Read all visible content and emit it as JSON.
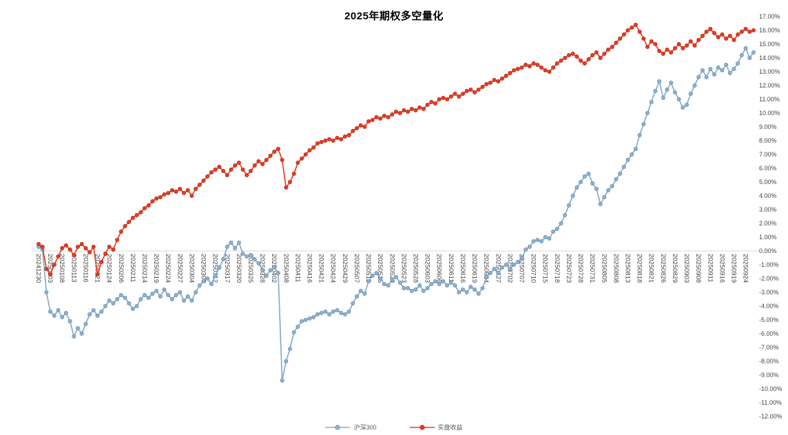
{
  "chart_data": {
    "type": "line",
    "title": "2025年期权多空量化",
    "x": [
      "20241230",
      "20241231",
      "20250102",
      "20250103",
      "20250106",
      "20250107",
      "20250108",
      "20250109",
      "20250110",
      "20250113",
      "20250114",
      "20250115",
      "20250116",
      "20250117",
      "20250120",
      "20250121",
      "20250122",
      "20250123",
      "20250124",
      "20250127",
      "20250205",
      "20250206",
      "20250207",
      "20250210",
      "20250211",
      "20250212",
      "20250213",
      "20250214",
      "20250217",
      "20250218",
      "20250219",
      "20250220",
      "20250221",
      "20250224",
      "20250225",
      "20250226",
      "20250227",
      "20250228",
      "20250303",
      "20250304",
      "20250305",
      "20250306",
      "20250307",
      "20250310",
      "20250311",
      "20250312",
      "20250313",
      "20250314",
      "20250317",
      "20250318",
      "20250319",
      "20250320",
      "20250321",
      "20250324",
      "20250325",
      "20250326",
      "20250327",
      "20250328",
      "20250331",
      "20250401",
      "20250402",
      "20250403",
      "20250407",
      "20250408",
      "20250409",
      "20250410",
      "20250411",
      "20250414",
      "20250415",
      "20250416",
      "20250417",
      "20250418",
      "20250421",
      "20250422",
      "20250423",
      "20250424",
      "20250425",
      "20250428",
      "20250429",
      "20250430",
      "20250506",
      "20250507",
      "20250508",
      "20250509",
      "20250512",
      "20250513",
      "20250514",
      "20250515",
      "20250516",
      "20250519",
      "20250520",
      "20250521",
      "20250522",
      "20250523",
      "20250526",
      "20250527",
      "20250528",
      "20250529",
      "20250530",
      "20250603",
      "20250604",
      "20250605",
      "20250606",
      "20250609",
      "20250610",
      "20250611",
      "20250612",
      "20250613",
      "20250616",
      "20250617",
      "20250618",
      "20250619",
      "20250620",
      "20250623",
      "20250624",
      "20250625",
      "20250626",
      "20250627",
      "20250630",
      "20250701",
      "20250702",
      "20250703",
      "20250704",
      "20250707",
      "20250708",
      "20250709",
      "20250710",
      "20250711",
      "20250714",
      "20250715",
      "20250716",
      "20250717",
      "20250718",
      "20250721",
      "20250722",
      "20250723",
      "20250724",
      "20250725",
      "20250728",
      "20250729",
      "20250730",
      "20250731",
      "20250801",
      "20250804",
      "20250805",
      "20250806",
      "20250807",
      "20250808",
      "20250811",
      "20250812",
      "20250813",
      "20250814",
      "20250815",
      "20250818",
      "20250819",
      "20250820",
      "20250821",
      "20250822",
      "20250825",
      "20250826",
      "20250827",
      "20250828",
      "20250829",
      "20250901",
      "20250902",
      "20250903",
      "20250904",
      "20250905",
      "20250908",
      "20250909",
      "20250910",
      "20250911",
      "20250912",
      "20250915",
      "20250916",
      "20250917",
      "20250918",
      "20250919",
      "20250922",
      "20250923",
      "20250924",
      "20250925",
      "20250926"
    ],
    "series": [
      {
        "id": "csi300",
        "name": "沪深300",
        "color": "#85ABCB",
        "marker_fill": "#8FB2D0",
        "marker_stroke": "#6690B5",
        "values": [
          0.3,
          0.1,
          -3.0,
          -4.4,
          -4.7,
          -4.3,
          -4.8,
          -4.5,
          -5.1,
          -6.2,
          -5.6,
          -6.0,
          -5.3,
          -4.6,
          -4.3,
          -4.7,
          -4.4,
          -4.0,
          -3.6,
          -3.8,
          -3.5,
          -3.2,
          -3.4,
          -3.8,
          -4.2,
          -4.0,
          -3.5,
          -3.2,
          -3.4,
          -3.1,
          -2.9,
          -3.3,
          -2.8,
          -3.2,
          -3.5,
          -3.2,
          -3.0,
          -3.6,
          -3.3,
          -3.6,
          -3.0,
          -2.5,
          -2.2,
          -2.0,
          -2.4,
          -1.8,
          -1.2,
          -0.6,
          0.3,
          0.6,
          0.2,
          0.6,
          -0.2,
          -0.4,
          -0.3,
          -0.6,
          -0.9,
          -1.4,
          -1.8,
          -1.4,
          -1.2,
          -1.6,
          -9.4,
          -8.0,
          -7.1,
          -5.9,
          -5.5,
          -5.1,
          -5.0,
          -4.9,
          -4.8,
          -4.6,
          -4.5,
          -4.4,
          -4.6,
          -4.4,
          -4.3,
          -4.5,
          -4.6,
          -4.4,
          -3.8,
          -3.3,
          -2.9,
          -3.1,
          -2.2,
          -1.8,
          -1.6,
          -2.0,
          -2.4,
          -2.5,
          -2.1,
          -1.9,
          -2.3,
          -2.7,
          -2.7,
          -2.9,
          -2.8,
          -2.5,
          -2.9,
          -2.7,
          -2.4,
          -2.2,
          -2.4,
          -2.2,
          -2.5,
          -2.3,
          -2.5,
          -3.0,
          -2.8,
          -3.0,
          -2.6,
          -2.8,
          -3.1,
          -2.7,
          -1.9,
          -1.6,
          -1.3,
          -1.6,
          -1.2,
          -1.0,
          -1.3,
          -1.0,
          -0.8,
          -0.5,
          0.1,
          0.3,
          0.7,
          0.8,
          0.7,
          1.0,
          0.9,
          1.4,
          1.6,
          2.0,
          2.6,
          3.3,
          4.0,
          4.6,
          5.0,
          5.4,
          5.6,
          4.9,
          4.5,
          3.4,
          3.9,
          4.4,
          4.7,
          5.2,
          5.6,
          6.1,
          6.6,
          7.0,
          7.4,
          8.4,
          9.2,
          10.0,
          10.8,
          11.6,
          12.3,
          11.1,
          11.7,
          12.2,
          11.5,
          11.0,
          10.4,
          10.6,
          11.4,
          12.0,
          12.6,
          13.1,
          12.6,
          13.2,
          12.8,
          13.3,
          13.1,
          13.5,
          12.9,
          13.2,
          13.6,
          14.2,
          14.7,
          14.0,
          14.4
        ]
      },
      {
        "id": "strategy",
        "name": "实盘收益",
        "color": "#EC3B24",
        "marker_fill": "#EC3B24",
        "marker_stroke": "#B22A12",
        "values": [
          0.5,
          0.3,
          -1.3,
          -1.7,
          -1.0,
          -0.4,
          0.2,
          0.4,
          0.1,
          -0.3,
          0.3,
          0.5,
          0.2,
          -0.1,
          0.3,
          -1.7,
          -0.8,
          -0.2,
          0.3,
          0.1,
          0.8,
          1.4,
          1.8,
          2.1,
          2.4,
          2.6,
          2.8,
          3.1,
          3.3,
          3.6,
          3.8,
          3.9,
          4.1,
          4.2,
          4.4,
          4.3,
          4.5,
          4.2,
          4.4,
          4.0,
          4.5,
          4.8,
          5.1,
          5.4,
          5.7,
          5.9,
          6.1,
          5.8,
          5.5,
          5.9,
          6.2,
          6.4,
          5.9,
          5.5,
          5.8,
          6.2,
          6.5,
          6.3,
          6.6,
          6.9,
          7.2,
          7.4,
          6.6,
          4.6,
          5.0,
          5.6,
          6.4,
          6.7,
          7.0,
          7.3,
          7.5,
          7.8,
          7.9,
          8.0,
          8.1,
          8.0,
          8.2,
          8.1,
          8.3,
          8.4,
          8.7,
          8.9,
          9.1,
          9.0,
          9.4,
          9.5,
          9.7,
          9.6,
          9.8,
          9.7,
          9.9,
          10.1,
          10.0,
          10.2,
          10.1,
          10.3,
          10.2,
          10.4,
          10.3,
          10.6,
          10.8,
          10.7,
          11.0,
          11.1,
          11.0,
          11.2,
          11.4,
          11.2,
          11.4,
          11.6,
          11.7,
          11.5,
          11.7,
          11.9,
          12.1,
          12.2,
          12.4,
          12.3,
          12.5,
          12.7,
          12.9,
          13.1,
          13.2,
          13.3,
          13.5,
          13.4,
          13.6,
          13.5,
          13.3,
          13.1,
          13.0,
          13.3,
          13.6,
          13.8,
          14.0,
          14.2,
          14.3,
          14.1,
          13.8,
          13.6,
          13.9,
          14.2,
          14.4,
          14.0,
          14.3,
          14.6,
          14.8,
          15.1,
          15.4,
          15.7,
          16.0,
          16.2,
          16.4,
          15.9,
          15.4,
          14.8,
          15.2,
          15.0,
          14.5,
          14.3,
          14.6,
          14.4,
          14.7,
          15.0,
          14.7,
          14.9,
          15.2,
          14.9,
          15.3,
          15.6,
          15.9,
          16.1,
          15.8,
          15.5,
          15.7,
          15.4,
          15.6,
          15.3,
          15.7,
          15.9,
          16.1,
          15.9,
          16.0
        ]
      }
    ],
    "ylim": [
      -12,
      17
    ],
    "y_tick_step": 1,
    "y_tick_decimals": 2,
    "y_tick_suffix": "%",
    "x_label_interval": 3,
    "x_axis_at": 0,
    "grid": false,
    "legend_position": "bottom-center",
    "colors": {
      "zero_line": "#D9D9D9",
      "axis_text": "#444444",
      "title_text": "#000000",
      "background": "#FFFFFF"
    }
  }
}
